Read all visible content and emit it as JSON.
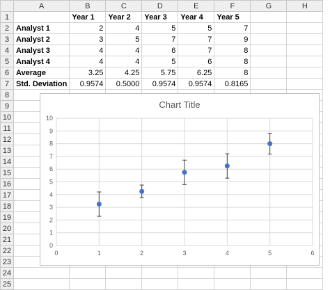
{
  "columns": [
    "A",
    "B",
    "C",
    "D",
    "E",
    "F",
    "G",
    "H"
  ],
  "rows": [
    "1",
    "2",
    "3",
    "4",
    "5",
    "6",
    "7",
    "8",
    "9",
    "10",
    "11",
    "12",
    "13",
    "14",
    "15",
    "16",
    "17",
    "18",
    "19",
    "20",
    "21",
    "22",
    "23",
    "24",
    "25"
  ],
  "table": {
    "header": [
      "",
      "Year 1",
      "Year 2",
      "Year 3",
      "Year 4",
      "Year 5"
    ],
    "data": [
      [
        "Analyst 1",
        "2",
        "4",
        "5",
        "5",
        "7"
      ],
      [
        "Analyst 2",
        "3",
        "5",
        "7",
        "7",
        "9"
      ],
      [
        "Analyst 3",
        "4",
        "4",
        "6",
        "7",
        "8"
      ],
      [
        "Analyst 4",
        "4",
        "4",
        "5",
        "6",
        "8"
      ],
      [
        "Average",
        "3.25",
        "4.25",
        "5.75",
        "6.25",
        "8"
      ],
      [
        "Std. Deviation",
        "0.9574",
        "0.5000",
        "0.9574",
        "0.9574",
        "0.8165"
      ]
    ]
  },
  "chart_data": {
    "type": "scatter",
    "title": "Chart Title",
    "x": [
      1,
      2,
      3,
      4,
      5
    ],
    "y": [
      3.25,
      4.25,
      5.75,
      6.25,
      8
    ],
    "error": [
      0.9574,
      0.5,
      0.9574,
      0.9574,
      0.8165
    ],
    "xlim": [
      0,
      6
    ],
    "ylim": [
      0,
      10
    ],
    "xticks": [
      "0",
      "1",
      "2",
      "3",
      "4",
      "5",
      "6"
    ],
    "yticks": [
      "0",
      "1",
      "2",
      "3",
      "4",
      "5",
      "6",
      "7",
      "8",
      "9",
      "10"
    ],
    "grid": true,
    "marker_color": "#4472c4",
    "error_color": "#404040"
  }
}
